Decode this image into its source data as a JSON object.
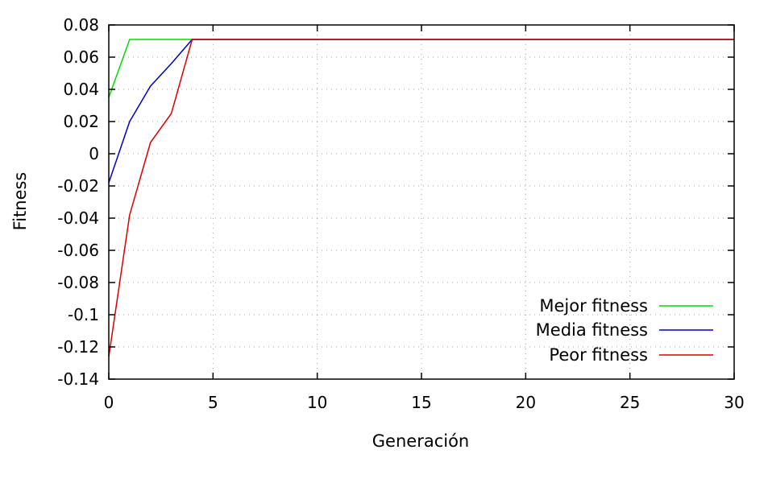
{
  "chart_data": {
    "type": "line",
    "title": "",
    "xlabel": "Generación",
    "ylabel": "Fitness",
    "xlim": [
      0,
      30
    ],
    "ylim": [
      -0.14,
      0.08
    ],
    "xticks": [
      0,
      5,
      10,
      15,
      20,
      25,
      30
    ],
    "xtick_labels": [
      "0",
      "5",
      "10",
      "15",
      "20",
      "25",
      "30"
    ],
    "yticks": [
      -0.14,
      -0.12,
      -0.1,
      -0.08,
      -0.06,
      -0.04,
      -0.02,
      0,
      0.02,
      0.04,
      0.06,
      0.08
    ],
    "ytick_labels": [
      "-0.14",
      "-0.12",
      "-0.1",
      "-0.08",
      "-0.06",
      "-0.04",
      "-0.02",
      "0",
      "0.02",
      "0.04",
      "0.06",
      "0.08"
    ],
    "grid": true,
    "legend_position": "bottom-right",
    "x": [
      0,
      1,
      2,
      3,
      4,
      5,
      6,
      7,
      8,
      9,
      10,
      11,
      12,
      13,
      14,
      15,
      16,
      17,
      18,
      19,
      20,
      21,
      22,
      23,
      24,
      25,
      26,
      27,
      28,
      29,
      30
    ],
    "series": [
      {
        "name": "Mejor fitness",
        "color": "#00dd00",
        "values": [
          0.035,
          0.071,
          0.071,
          0.071,
          0.071,
          0.071,
          0.071,
          0.071,
          0.071,
          0.071,
          0.071,
          0.071,
          0.071,
          0.071,
          0.071,
          0.071,
          0.071,
          0.071,
          0.071,
          0.071,
          0.071,
          0.071,
          0.071,
          0.071,
          0.071,
          0.071,
          0.071,
          0.071,
          0.071,
          0.071,
          0.071
        ]
      },
      {
        "name": "Media fitness",
        "color": "#0000cc",
        "values": [
          -0.018,
          0.02,
          0.042,
          0.056,
          0.071,
          0.071,
          0.071,
          0.071,
          0.071,
          0.071,
          0.071,
          0.071,
          0.071,
          0.071,
          0.071,
          0.071,
          0.071,
          0.071,
          0.071,
          0.071,
          0.071,
          0.071,
          0.071,
          0.071,
          0.071,
          0.071,
          0.071,
          0.071,
          0.071,
          0.071,
          0.071
        ]
      },
      {
        "name": "Peor fitness",
        "color": "#dd0000",
        "values": [
          -0.126,
          -0.038,
          0.007,
          0.025,
          0.071,
          0.071,
          0.071,
          0.071,
          0.071,
          0.071,
          0.071,
          0.071,
          0.071,
          0.071,
          0.071,
          0.071,
          0.071,
          0.071,
          0.071,
          0.071,
          0.071,
          0.071,
          0.071,
          0.071,
          0.071,
          0.071,
          0.071,
          0.071,
          0.071,
          0.071,
          0.071
        ]
      }
    ]
  }
}
